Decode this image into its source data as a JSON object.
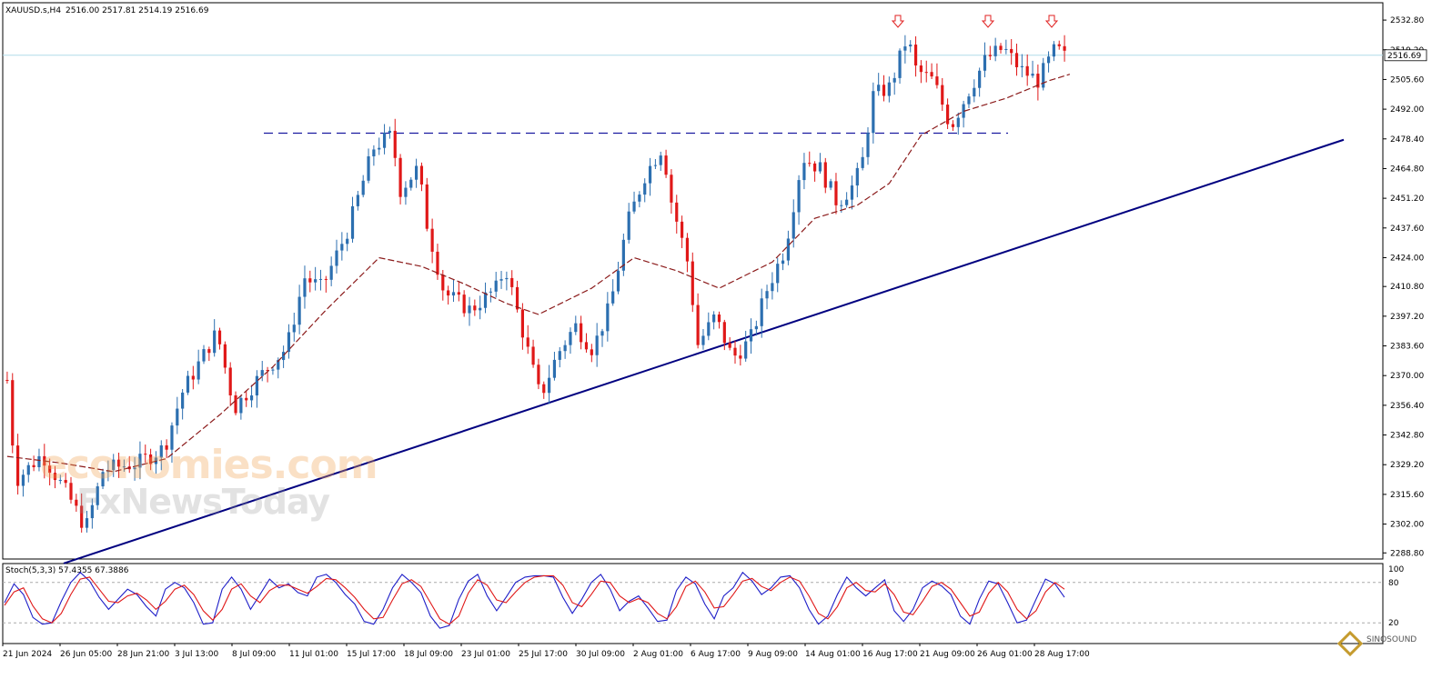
{
  "header": {
    "symbol": "XAUUSD.s,H4",
    "ohlc": "2516.00 2517.81 2514.19 2516.69"
  },
  "indicator_label": "Stoch(5,3,3) 57.4355 67.3886",
  "watermark": {
    "line1": "economies.com",
    "line2": "FxNewsToday"
  },
  "logo_text": "SINOSOUND",
  "colors": {
    "bull": "#2c6fb0",
    "bear": "#e01818",
    "trendline": "#000080",
    "ma": "#8b1a1a",
    "resistance": "#1a1aa0",
    "stoch_main": "#1e1ec8",
    "stoch_signal": "#e01818",
    "price_line": "#b0dce8",
    "marker": "#e02020"
  },
  "chart_data": [
    {
      "type": "candlestick",
      "title": "XAUUSD.s,H4",
      "price_axis_labels": [
        "2532.80",
        "2519.20",
        "2505.60",
        "2492.00",
        "2478.40",
        "2464.80",
        "2451.20",
        "2437.60",
        "2424.00",
        "2410.80",
        "2397.20",
        "2383.60",
        "2370.00",
        "2356.40",
        "2342.80",
        "2329.20",
        "2315.60",
        "2302.00",
        "2288.80"
      ],
      "ylim": [
        2286,
        2537
      ],
      "current_price": "2516.69",
      "time_axis_labels": [
        "21 Jun 2024",
        "26 Jun 05:00",
        "28 Jun 21:00",
        "3 Jul 13:00",
        "8 Jul 09:00",
        "11 Jul 01:00",
        "15 Jul 17:00",
        "18 Jul 09:00",
        "23 Jul 01:00",
        "25 Jul 17:00",
        "30 Jul 09:00",
        "2 Aug 01:00",
        "6 Aug 17:00",
        "9 Aug 09:00",
        "14 Aug 01:00",
        "16 Aug 17:00",
        "21 Aug 09:00",
        "26 Aug 01:00",
        "28 Aug 17:00"
      ],
      "close_path": [
        [
          0,
          2368
        ],
        [
          2,
          2322
        ],
        [
          8,
          2334
        ],
        [
          14,
          2315
        ],
        [
          18,
          2300
        ],
        [
          22,
          2327
        ],
        [
          30,
          2330
        ],
        [
          36,
          2337
        ],
        [
          40,
          2362
        ],
        [
          48,
          2390
        ],
        [
          52,
          2355
        ],
        [
          58,
          2370
        ],
        [
          64,
          2383
        ],
        [
          68,
          2415
        ],
        [
          72,
          2410
        ],
        [
          78,
          2437
        ],
        [
          84,
          2475
        ],
        [
          88,
          2480
        ],
        [
          90,
          2455
        ],
        [
          94,
          2465
        ],
        [
          96,
          2440
        ],
        [
          100,
          2408
        ],
        [
          106,
          2400
        ],
        [
          112,
          2410
        ],
        [
          114,
          2420
        ],
        [
          118,
          2390
        ],
        [
          122,
          2360
        ],
        [
          126,
          2380
        ],
        [
          130,
          2393
        ],
        [
          134,
          2382
        ],
        [
          138,
          2402
        ],
        [
          142,
          2440
        ],
        [
          146,
          2462
        ],
        [
          150,
          2475
        ],
        [
          152,
          2450
        ],
        [
          156,
          2420
        ],
        [
          158,
          2384
        ],
        [
          162,
          2397
        ],
        [
          166,
          2378
        ],
        [
          170,
          2386
        ],
        [
          174,
          2410
        ],
        [
          178,
          2428
        ],
        [
          182,
          2470
        ],
        [
          186,
          2465
        ],
        [
          190,
          2449
        ],
        [
          194,
          2458
        ],
        [
          196,
          2470
        ],
        [
          198,
          2498
        ],
        [
          202,
          2502
        ],
        [
          206,
          2525
        ],
        [
          208,
          2510
        ],
        [
          212,
          2505
        ],
        [
          216,
          2484
        ],
        [
          220,
          2500
        ],
        [
          224,
          2515
        ],
        [
          228,
          2520
        ],
        [
          232,
          2510
        ],
        [
          236,
          2505
        ],
        [
          240,
          2520
        ],
        [
          242,
          2516
        ]
      ],
      "trendline": {
        "start": [
          0,
          2284
        ],
        "end": [
          248,
          2478
        ]
      },
      "resistance": {
        "price": 2481,
        "from_bar": 48,
        "to_bar": 184
      },
      "ma": {
        "name": "",
        "points": [
          [
            0,
            2333
          ],
          [
            10,
            2330
          ],
          [
            20,
            2326
          ],
          [
            30,
            2332
          ],
          [
            40,
            2352
          ],
          [
            50,
            2374
          ],
          [
            60,
            2400
          ],
          [
            70,
            2424
          ],
          [
            78,
            2420
          ],
          [
            86,
            2412
          ],
          [
            94,
            2403
          ],
          [
            100,
            2398
          ],
          [
            110,
            2410
          ],
          [
            118,
            2424
          ],
          [
            126,
            2418
          ],
          [
            134,
            2410
          ],
          [
            144,
            2422
          ],
          [
            152,
            2442
          ],
          [
            160,
            2448
          ],
          [
            166,
            2458
          ],
          [
            172,
            2480
          ],
          [
            180,
            2491
          ],
          [
            188,
            2497
          ],
          [
            196,
            2505
          ],
          [
            200,
            2508
          ]
        ]
      },
      "markers_bars": [
        166,
        182,
        194
      ],
      "total_bars": 200
    },
    {
      "type": "line",
      "title": "Stoch(5,3,3)",
      "main_value": 57.4355,
      "signal_value": 67.3886,
      "ylim": [
        0,
        100
      ],
      "y_tick_labels": [
        "100",
        "80",
        "20"
      ],
      "levels": [
        80,
        20
      ],
      "series": [
        {
          "values": [
            50,
            78,
            62,
            28,
            18,
            20,
            52,
            80,
            95,
            82,
            58,
            40,
            55,
            70,
            62,
            44,
            30,
            70,
            80,
            72,
            50,
            18,
            20,
            70,
            88,
            70,
            40,
            62,
            85,
            72,
            78,
            65,
            60,
            88,
            92,
            80,
            62,
            48,
            22,
            18,
            40,
            72,
            92,
            80,
            65,
            30,
            12,
            16,
            55,
            82,
            92,
            60,
            38,
            58,
            80,
            88,
            90,
            90,
            88,
            58,
            34,
            55,
            80,
            92,
            70,
            38,
            52,
            60,
            42,
            22,
            24,
            68,
            88,
            78,
            48,
            26,
            60,
            72,
            95,
            82,
            62,
            72,
            88,
            90,
            72,
            40,
            18,
            30,
            62,
            88,
            72,
            60,
            72,
            84,
            38,
            22,
            40,
            72,
            82,
            75,
            62,
            30,
            18,
            55,
            82,
            78,
            50,
            20,
            24,
            55,
            85,
            78,
            58
          ]
        },
        {
          "values": [
            46,
            66,
            72,
            45,
            26,
            20,
            34,
            62,
            85,
            88,
            70,
            52,
            50,
            60,
            64,
            54,
            40,
            52,
            70,
            76,
            62,
            38,
            24,
            40,
            70,
            78,
            60,
            50,
            68,
            76,
            76,
            70,
            64,
            74,
            86,
            84,
            72,
            58,
            40,
            26,
            28,
            54,
            78,
            84,
            74,
            50,
            26,
            18,
            30,
            64,
            84,
            76,
            54,
            50,
            66,
            80,
            88,
            90,
            90,
            76,
            50,
            44,
            62,
            82,
            80,
            60,
            50,
            56,
            50,
            34,
            26,
            44,
            74,
            82,
            66,
            42,
            44,
            62,
            82,
            86,
            74,
            68,
            80,
            88,
            82,
            60,
            34,
            26,
            44,
            72,
            80,
            68,
            66,
            78,
            62,
            36,
            32,
            52,
            74,
            80,
            70,
            50,
            30,
            36,
            64,
            80,
            66,
            40,
            26,
            38,
            66,
            80,
            70
          ]
        }
      ]
    }
  ]
}
